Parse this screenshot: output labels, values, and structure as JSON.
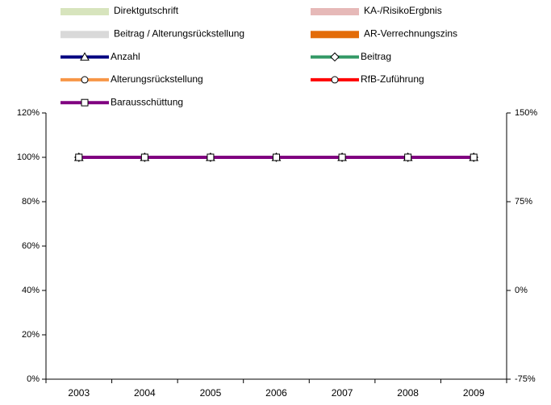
{
  "chart_data": {
    "type": "combo",
    "categories": [
      "2003",
      "2004",
      "2005",
      "2006",
      "2007",
      "2008",
      "2009"
    ],
    "series": [
      {
        "name": "Direktgutschrift",
        "type": "bar",
        "color": "#d7e4bd",
        "values": [
          0,
          0,
          0,
          0,
          0,
          0,
          0
        ]
      },
      {
        "name": "KA-/RisikoErgbnis",
        "type": "bar",
        "color": "#e6b9b8",
        "values": [
          0,
          0,
          0,
          0,
          0,
          0,
          0
        ]
      },
      {
        "name": "Beitrag / Alterungsrückstellung",
        "type": "bar",
        "color": "#d9d9d9",
        "values": [
          0,
          0,
          0,
          0,
          0,
          0,
          0
        ]
      },
      {
        "name": "AR-Verrechnungszins",
        "type": "bar",
        "color": "#e36c09",
        "values": [
          0,
          0,
          0,
          0,
          0,
          0,
          0
        ]
      },
      {
        "name": "Anzahl",
        "type": "line",
        "color": "#000080",
        "marker": "triangle",
        "values": [
          100,
          100,
          100,
          100,
          100,
          100,
          100
        ]
      },
      {
        "name": "Beitrag",
        "type": "line",
        "color": "#339966",
        "marker": "diamond",
        "values": [
          100,
          100,
          100,
          100,
          100,
          100,
          100
        ]
      },
      {
        "name": "Alterungsrückstellung",
        "type": "line",
        "color": "#f79646",
        "marker": "circle",
        "values": [
          100,
          100,
          100,
          100,
          100,
          100,
          100
        ]
      },
      {
        "name": "RfB-Zuführung",
        "type": "line",
        "color": "#ff0000",
        "marker": "circle",
        "values": [
          100,
          100,
          100,
          100,
          100,
          100,
          100
        ]
      },
      {
        "name": "Barausschüttung",
        "type": "line",
        "color": "#800080",
        "marker": "square",
        "values": [
          100,
          100,
          100,
          100,
          100,
          100,
          100
        ]
      }
    ],
    "ylim": [
      0,
      120
    ],
    "yticks": [
      {
        "value": 0,
        "label": "0%"
      },
      {
        "value": 20,
        "label": "20%"
      },
      {
        "value": 40,
        "label": "40%"
      },
      {
        "value": 60,
        "label": "60%"
      },
      {
        "value": 80,
        "label": "80%"
      },
      {
        "value": 100,
        "label": "100%"
      },
      {
        "value": 120,
        "label": "120%"
      }
    ],
    "y2lim": [
      -75,
      150
    ],
    "y2ticks": [
      {
        "value": -75,
        "label": "-75%"
      },
      {
        "value": 0,
        "label": "0%"
      },
      {
        "value": 75,
        "label": "75%"
      },
      {
        "value": 150,
        "label": "150%"
      }
    ],
    "grid": false
  }
}
